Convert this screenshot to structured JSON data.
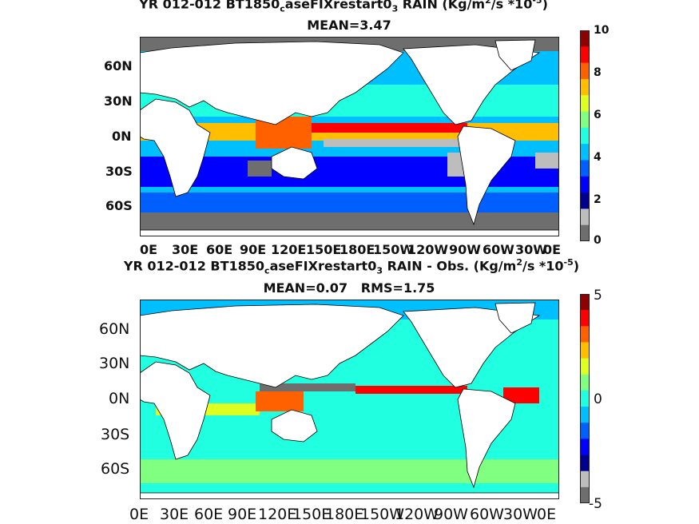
{
  "chart_data": [
    {
      "type": "heatmap",
      "title_line1": "YR 012-012 BT1850",
      "title_sub": "c",
      "title_mid": "aseFIXrestart0",
      "title_sub2": "3",
      "title_tail": " RAIN (Kg/m",
      "title_sup": "2",
      "title_end": "/s *10",
      "title_sup2": "-5",
      "title_close": ")",
      "subtitle": "MEAN=3.47",
      "x_ticks": [
        "0E",
        "30E",
        "60E",
        "90E",
        "120E",
        "150E",
        "180E",
        "150W",
        "120W",
        "90W",
        "60W",
        "30W",
        "0E"
      ],
      "y_ticks": [
        "60N",
        "30N",
        "0N",
        "30S",
        "60S"
      ],
      "colorbar": {
        "ticks": [
          "10",
          "8",
          "6",
          "4",
          "2",
          "0"
        ],
        "range": [
          0,
          10
        ]
      },
      "mean": 3.47
    },
    {
      "type": "heatmap",
      "title_line1": "YR 012-012 BT1850",
      "title_sub": "c",
      "title_mid": "aseFIXrestart0",
      "title_sub2": "3",
      "title_tail": " RAIN - Obs. (Kg/m",
      "title_sup": "2",
      "title_end": "/s *10",
      "title_sup2": "-5",
      "title_close": ")",
      "subtitle": "MEAN=0.07   RMS=1.75",
      "x_ticks": [
        "0E",
        "30E",
        "60E",
        "90E",
        "120E",
        "150E",
        "180E",
        "150W",
        "120W",
        "90W",
        "60W",
        "30W",
        "0E"
      ],
      "y_ticks": [
        "60N",
        "30N",
        "0N",
        "30S",
        "60S"
      ],
      "colorbar": {
        "ticks": [
          "5",
          "0",
          "-5"
        ],
        "range": [
          -5,
          5
        ]
      },
      "mean": 0.07,
      "rms": 1.75
    }
  ],
  "colors": {
    "land": "#ffffff",
    "missing": "#6e6e6e",
    "low": "#bdbdbd",
    "jet": [
      "#00008f",
      "#0000ff",
      "#0060ff",
      "#00bfff",
      "#20ffdf",
      "#80ff80",
      "#dfff20",
      "#ffbf00",
      "#ff6000",
      "#ff0000",
      "#8f0000"
    ]
  }
}
